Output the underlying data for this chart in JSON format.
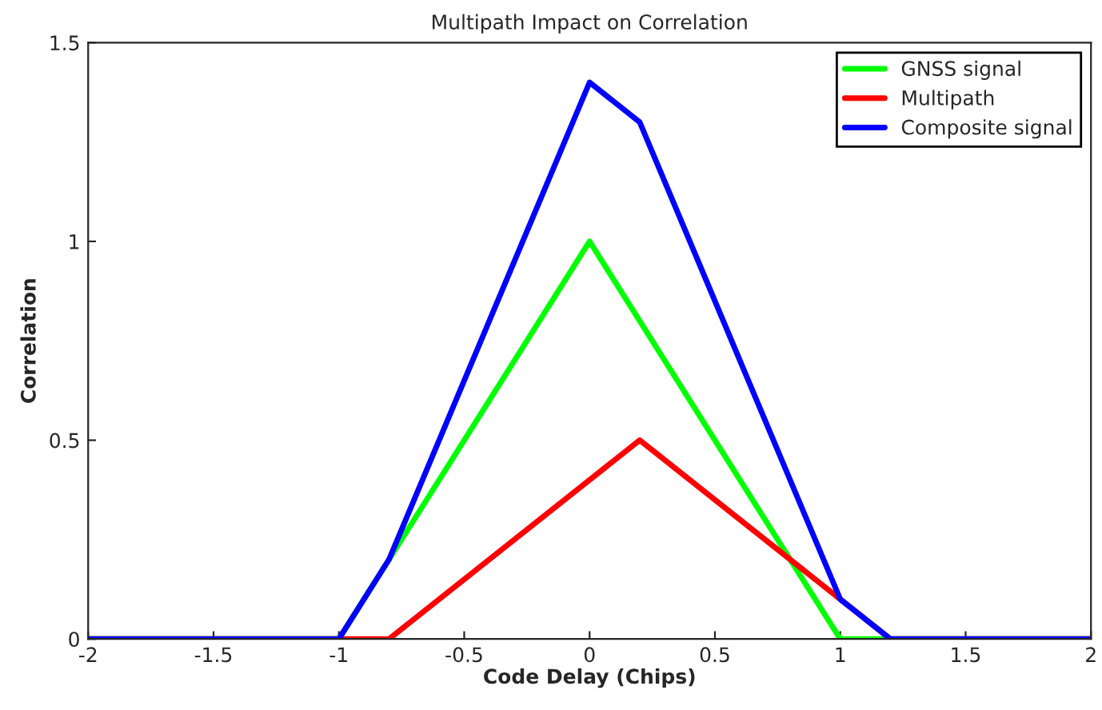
{
  "chart_data": {
    "type": "line",
    "title": "Multipath Impact on Correlation",
    "xlabel": "Code Delay (Chips)",
    "ylabel": "Correlation",
    "x": [
      -2,
      -1,
      -0.8,
      0,
      0.2,
      1,
      1.2,
      2
    ],
    "series": [
      {
        "name": "GNSS signal",
        "color": "#00ff00",
        "values": [
          0,
          0,
          0.2,
          1,
          0.8,
          0,
          0,
          0
        ]
      },
      {
        "name": "Multipath",
        "color": "#ff0000",
        "values": [
          0,
          0,
          0,
          0.4,
          0.5,
          0.1,
          0,
          0
        ]
      },
      {
        "name": "Composite signal",
        "color": "#0000ff",
        "values": [
          0,
          0,
          0.2,
          1.4,
          1.3,
          0.1,
          0,
          0
        ]
      }
    ],
    "xlim": [
      -2,
      2
    ],
    "xticks": [
      -2,
      -1.5,
      -1,
      -0.5,
      0,
      0.5,
      1,
      1.5,
      2
    ],
    "ylim": [
      0,
      1.5
    ],
    "yticks": [
      0,
      0.5,
      1,
      1.5
    ],
    "grid": false,
    "legend": "top right",
    "marker": "none",
    "line_style": "solid"
  }
}
